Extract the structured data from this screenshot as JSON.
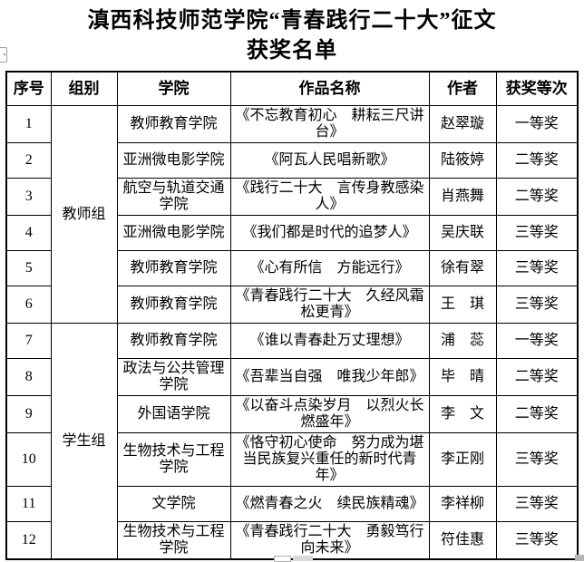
{
  "title": {
    "line1": "滇西科技师范学院“青春践行二十大”征文",
    "line2": "获奖名单"
  },
  "table": {
    "headers": [
      "序号",
      "组别",
      "学院",
      "作品名称",
      "作者",
      "获奖等次"
    ],
    "groups": [
      {
        "label": "教师组",
        "span": 6
      },
      {
        "label": "学生组",
        "span": 6
      }
    ],
    "rows": [
      {
        "no": "1",
        "college": "教师教育学院",
        "work": "《不忘教育初心　耕耘三尺讲台》",
        "author": "赵翠璇",
        "award": "一等奖"
      },
      {
        "no": "2",
        "college": "亚洲微电影学院",
        "work": "《阿瓦人民唱新歌》",
        "author": "陆筱婷",
        "award": "二等奖"
      },
      {
        "no": "3",
        "college": "航空与轨道交通学院",
        "work": "《践行二十大　言传身教感染人》",
        "author": "肖燕舞",
        "award": "二等奖"
      },
      {
        "no": "4",
        "college": "亚洲微电影学院",
        "work": "《我们都是时代的追梦人》",
        "author": "吴庆联",
        "award": "三等奖"
      },
      {
        "no": "5",
        "college": "教师教育学院",
        "work": "《心有所信　方能远行》",
        "author": "徐有翠",
        "award": "三等奖"
      },
      {
        "no": "6",
        "college": "教师教育学院",
        "work": "《青春践行二十大　久经风霜松更青》",
        "author": "王　琪",
        "award": "三等奖"
      },
      {
        "no": "7",
        "college": "教师教育学院",
        "work": "《谁以青春赴万丈理想》",
        "author": "浦　蕊",
        "award": "一等奖"
      },
      {
        "no": "8",
        "college": "政法与公共管理学院",
        "work": "《吾辈当自强　唯我少年郎》",
        "author": "毕　晴",
        "award": "二等奖"
      },
      {
        "no": "9",
        "college": "外国语学院",
        "work": "《以奋斗点染岁月　以烈火长燃盛年》",
        "author": "李　文",
        "award": "二等奖"
      },
      {
        "no": "10",
        "college": "生物技术与工程学院",
        "work": "《恪守初心使命　努力成为堪当民族复兴重任的新时代青年》",
        "author": "李正刚",
        "award": "三等奖"
      },
      {
        "no": "11",
        "college": "文学院",
        "work": "《燃青春之火　续民族精魂》",
        "author": "李祥柳",
        "award": "三等奖"
      },
      {
        "no": "12",
        "college": "生物技术与工程学院",
        "work": "《青春践行二十大　勇毅笃行向未来》",
        "author": "符佳惠",
        "award": "三等奖"
      }
    ]
  }
}
